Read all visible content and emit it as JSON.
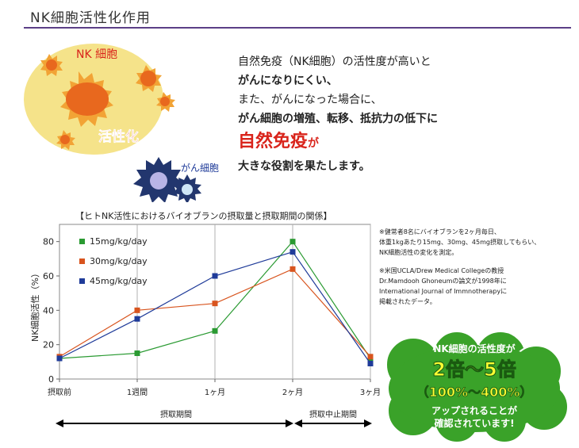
{
  "page_title": "NK細胞活性化作用",
  "illustration": {
    "nk_label": "NK 細胞",
    "activation_label": "活性化",
    "cancer_label": "がん細胞"
  },
  "intro": {
    "line1": "自然免疫（NK細胞）の活性度が高いと",
    "line2": "がんになりにくい、",
    "line3": "また、がんになった場合に、",
    "line4": "がん細胞の増殖、転移、抵抗力の低下に",
    "highlight": "自然免疫",
    "particle": "が",
    "line6": "大きな役割を果たします。"
  },
  "chart_title": "【ヒトNK活性におけるバイオブランの摂取量と摂取期間の関係】",
  "notes": {
    "note1": "※健常者8名にバイオブランを2ヶ月毎日、\n体重1kgあたり15mg、30mg、45mg摂取してもらい、\nNK細胞活性の変化を測定。",
    "note2": "※米国UCLA/Drew Medical Collegeの教授\nDr.Mamdooh Ghoneumの論文が1998年に\nInternational Journal of Immnotherapyに\n掲載されたデータ。"
  },
  "periods": {
    "intake": "摂取期間",
    "stop": "摂取中止期間"
  },
  "badge": {
    "line1": "NK細胞の活性度が",
    "line2": "2倍〜5倍",
    "line3": "（100%〜400%）",
    "line4": "アップされることが",
    "line5": "確認されています!"
  },
  "colors": {
    "accent": "#5b3f86",
    "green": "#2a9a32",
    "orange": "#d8541e",
    "blue": "#1f3b99",
    "red": "#d9241b",
    "badge_green": "#3aa229"
  },
  "chart_data": {
    "type": "line",
    "categories": [
      "摂取前",
      "1週間",
      "1ヶ月",
      "2ヶ月",
      "3ヶ月"
    ],
    "ylabel": "NK細胞活性（%）",
    "ylim": [
      0,
      90
    ],
    "yticks": [
      0,
      20,
      40,
      60,
      80
    ],
    "grid": "vertical",
    "legend": "top-left",
    "series": [
      {
        "name": "15mg/kg/day",
        "color": "#2a9a32",
        "values": [
          12,
          15,
          28,
          80,
          12
        ]
      },
      {
        "name": "30mg/kg/day",
        "color": "#d8541e",
        "values": [
          13,
          40,
          44,
          64,
          13
        ]
      },
      {
        "name": "45mg/kg/day",
        "color": "#1f3b99",
        "values": [
          12,
          35,
          60,
          74,
          9
        ]
      }
    ]
  }
}
